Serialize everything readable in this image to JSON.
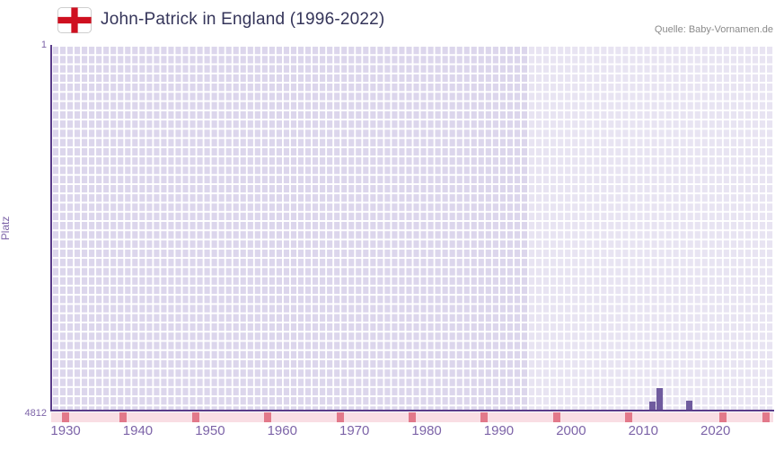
{
  "header": {
    "title": "John-Patrick in England (1996-2022)",
    "source": "Quelle: Baby-Vornamen.de"
  },
  "chart_data": {
    "type": "bar",
    "title": "John-Patrick in England (1996-2022)",
    "xlabel": "",
    "ylabel": "Platz",
    "grid": true,
    "legend": null,
    "y_axis": {
      "top_tick": "1",
      "bottom_tick": "4812",
      "min": 1,
      "max": 4812,
      "inverted": true
    },
    "x_axis": {
      "range_start": 1928,
      "range_end": 2028,
      "tick_years": [
        1930,
        1940,
        1950,
        1960,
        1970,
        1980,
        1990,
        2000,
        2010,
        2020
      ]
    },
    "bars": [
      {
        "year": 2011,
        "platz": 4700
      },
      {
        "year": 2012,
        "platz": 4530
      },
      {
        "year": 2016,
        "platz": 4690
      }
    ],
    "highlight_band": {
      "from_year": 1994,
      "to_year": 2028
    },
    "baseline_marks_years": [
      1930,
      1938,
      1948,
      1958,
      1968,
      1978,
      1988,
      1998,
      2008,
      2021,
      2027
    ],
    "colors": {
      "bar": "#6f5b9e",
      "grid_cell": "#dcd6ec",
      "grid_line": "#ffffff",
      "band_overlay": "rgba(255,255,255,0.35)",
      "axis_line": "#5a3d8a",
      "strip_bg": "#f9dee4",
      "strip_mark": "#e2798a",
      "tick_text": "#7d64a8",
      "title_text": "#35355a",
      "source_text": "#8a8a8a",
      "flag_cross": "#cf1020"
    }
  }
}
